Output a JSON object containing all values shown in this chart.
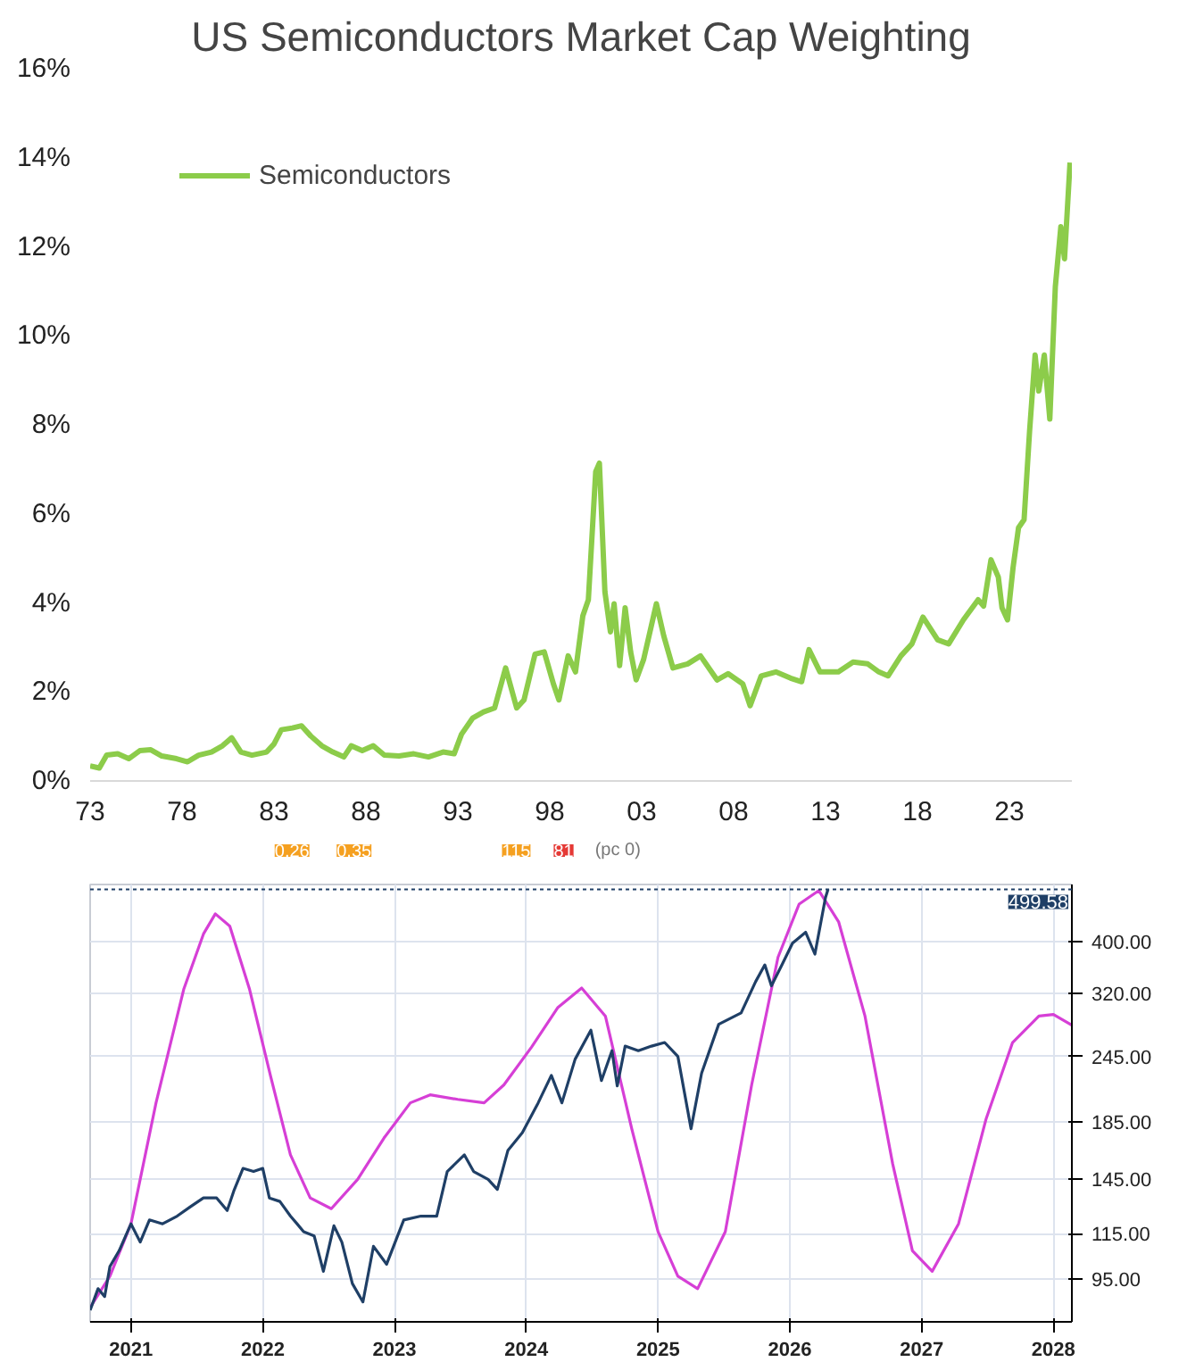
{
  "chart_data": [
    {
      "type": "line",
      "title": "US Semiconductors Market Cap Weighting",
      "legend": "top left",
      "grid": false,
      "xlim": [
        1973,
        2026.4
      ],
      "ylim": [
        0,
        16
      ],
      "xticks": [
        {
          "value": 1973,
          "label": "73"
        },
        {
          "value": 1978,
          "label": "78"
        },
        {
          "value": 1983,
          "label": "83"
        },
        {
          "value": 1988,
          "label": "88"
        },
        {
          "value": 1993,
          "label": "93"
        },
        {
          "value": 1998,
          "label": "98"
        },
        {
          "value": 2003,
          "label": "03"
        },
        {
          "value": 2008,
          "label": "08"
        },
        {
          "value": 2013,
          "label": "13"
        },
        {
          "value": 2018,
          "label": "18"
        },
        {
          "value": 2023,
          "label": "23"
        }
      ],
      "yticks": [
        {
          "value": 0,
          "label": "0%"
        },
        {
          "value": 2,
          "label": "2%"
        },
        {
          "value": 4,
          "label": "4%"
        },
        {
          "value": 6,
          "label": "6%"
        },
        {
          "value": 8,
          "label": "8%"
        },
        {
          "value": 10,
          "label": "10%"
        },
        {
          "value": 12,
          "label": "12%"
        },
        {
          "value": 14,
          "label": "14%"
        },
        {
          "value": 16,
          "label": "16%"
        }
      ],
      "series": [
        {
          "name": "Semiconductors",
          "color": "#8ccc4a",
          "x": [
            1973.0,
            1973.5,
            1973.9,
            1974.5,
            1975.1,
            1975.7,
            1976.3,
            1976.9,
            1977.7,
            1978.3,
            1978.9,
            1979.6,
            1980.2,
            1980.7,
            1981.2,
            1981.8,
            1982.6,
            1983.0,
            1983.4,
            1984.0,
            1984.5,
            1985.0,
            1985.6,
            1986.2,
            1986.8,
            1987.2,
            1987.8,
            1988.4,
            1989.0,
            1989.8,
            1990.6,
            1991.4,
            1992.2,
            1992.8,
            1993.2,
            1993.8,
            1994.4,
            1995.0,
            1995.6,
            1996.2,
            1996.6,
            1997.2,
            1997.7,
            1998.2,
            1998.5,
            1999.0,
            1999.4,
            1999.8,
            2000.1,
            2000.5,
            2000.7,
            2001.0,
            2001.3,
            2001.5,
            2001.8,
            2002.1,
            2002.4,
            2002.7,
            2003.1,
            2003.8,
            2004.2,
            2004.7,
            2005.5,
            2006.2,
            2007.1,
            2007.7,
            2008.5,
            2008.9,
            2009.5,
            2010.3,
            2011.1,
            2011.7,
            2012.1,
            2012.7,
            2013.7,
            2014.5,
            2015.3,
            2015.9,
            2016.4,
            2017.1,
            2017.7,
            2018.3,
            2019.1,
            2019.7,
            2020.5,
            2021.3,
            2021.6,
            2022.0,
            2022.4,
            2022.6,
            2022.9,
            2023.2,
            2023.5,
            2023.8,
            2024.1,
            2024.4,
            2024.6,
            2024.9,
            2025.2,
            2025.5,
            2025.8,
            2026.0,
            2026.3
          ],
          "values": [
            0.34,
            0.29,
            0.58,
            0.61,
            0.5,
            0.68,
            0.7,
            0.56,
            0.5,
            0.43,
            0.58,
            0.65,
            0.79,
            0.97,
            0.65,
            0.58,
            0.65,
            0.83,
            1.15,
            1.19,
            1.24,
            1.01,
            0.79,
            0.65,
            0.54,
            0.79,
            0.68,
            0.79,
            0.58,
            0.56,
            0.61,
            0.54,
            0.65,
            0.61,
            1.05,
            1.41,
            1.55,
            1.64,
            2.54,
            1.64,
            1.82,
            2.85,
            2.9,
            2.18,
            1.82,
            2.81,
            2.45,
            3.71,
            4.07,
            6.95,
            7.14,
            4.25,
            3.35,
            3.98,
            2.59,
            3.89,
            2.9,
            2.27,
            2.72,
            3.98,
            3.26,
            2.54,
            2.63,
            2.81,
            2.27,
            2.41,
            2.18,
            1.69,
            2.36,
            2.45,
            2.31,
            2.23,
            2.95,
            2.45,
            2.45,
            2.67,
            2.63,
            2.45,
            2.36,
            2.81,
            3.08,
            3.68,
            3.17,
            3.08,
            3.62,
            4.07,
            3.93,
            4.97,
            4.58,
            3.89,
            3.62,
            4.79,
            5.69,
            5.87,
            7.86,
            9.57,
            8.76,
            9.57,
            8.13,
            11.1,
            12.45,
            11.73,
            13.89
          ]
        }
      ]
    },
    {
      "type": "line",
      "log": true,
      "grid": true,
      "xlim": [
        2020.69,
        2028.14
      ],
      "ylim": [
        79,
        510
      ],
      "xticks": [
        {
          "value": 2021,
          "label": "2021"
        },
        {
          "value": 2022,
          "label": "2022"
        },
        {
          "value": 2023,
          "label": "2023"
        },
        {
          "value": 2024,
          "label": "2024"
        },
        {
          "value": 2025,
          "label": "2025"
        },
        {
          "value": 2026,
          "label": "2026"
        },
        {
          "value": 2027,
          "label": "2027"
        },
        {
          "value": 2028,
          "label": "2028"
        }
      ],
      "yticks": [
        {
          "value": 95,
          "label": "95.00"
        },
        {
          "value": 115,
          "label": "115.00"
        },
        {
          "value": 145,
          "label": "145.00"
        },
        {
          "value": 185,
          "label": "185.00"
        },
        {
          "value": 245,
          "label": "245.00"
        },
        {
          "value": 320,
          "label": "320.00"
        },
        {
          "value": 400,
          "label": "400.00"
        }
      ],
      "ref_lines": [
        {
          "axis": "y",
          "value": 499.58,
          "label": "499.58",
          "line_style": "dotted",
          "color": "#1f3f66"
        }
      ],
      "annotations": [
        "0.26",
        "0.35",
        "115",
        "81",
        "(pc 0)"
      ],
      "series": [
        {
          "color": "#d63fd6",
          "x": [
            2020.69,
            2020.84,
            2021.0,
            2021.19,
            2021.4,
            2021.55,
            2021.64,
            2021.75,
            2021.9,
            2022.06,
            2022.21,
            2022.36,
            2022.52,
            2022.72,
            2022.92,
            2023.12,
            2023.27,
            2023.48,
            2023.68,
            2023.83,
            2024.04,
            2024.24,
            2024.42,
            2024.6,
            2024.8,
            2025.0,
            2025.15,
            2025.3,
            2025.51,
            2025.71,
            2025.91,
            2026.07,
            2026.22,
            2026.37,
            2026.57,
            2026.78,
            2026.93,
            2027.08,
            2027.28,
            2027.49,
            2027.69,
            2027.89,
            2028.0,
            2028.14
          ],
          "values": [
            84,
            96,
            120,
            201,
            326,
            413,
            450,
            427,
            326,
            225,
            161,
            134,
            128,
            145,
            173,
            201,
            208,
            204,
            201,
            217,
            255,
            302,
            328,
            291,
            180,
            116,
            96,
            91,
            116,
            217,
            374,
            469,
            497,
            435,
            291,
            155,
            107,
            98,
            120,
            188,
            260,
            291,
            293,
            280
          ]
        },
        {
          "color": "#1f3f66",
          "x": [
            2020.69,
            2020.75,
            2020.8,
            2020.84,
            2020.91,
            2021.0,
            2021.07,
            2021.14,
            2021.24,
            2021.35,
            2021.45,
            2021.55,
            2021.65,
            2021.73,
            2021.78,
            2021.85,
            2021.93,
            2022.0,
            2022.05,
            2022.13,
            2022.21,
            2022.26,
            2022.31,
            2022.39,
            2022.46,
            2022.54,
            2022.6,
            2022.68,
            2022.76,
            2022.84,
            2022.94,
            2023.07,
            2023.2,
            2023.32,
            2023.4,
            2023.53,
            2023.6,
            2023.71,
            2023.78,
            2023.86,
            2023.97,
            2024.09,
            2024.19,
            2024.27,
            2024.37,
            2024.49,
            2024.57,
            2024.65,
            2024.69,
            2024.75,
            2024.85,
            2024.95,
            2025.05,
            2025.15,
            2025.25,
            2025.33,
            2025.46,
            2025.63,
            2025.74,
            2025.81,
            2025.86,
            2025.94,
            2026.02,
            2026.12,
            2026.19,
            2026.27,
            2026.29
          ],
          "values": [
            83,
            91,
            88,
            100,
            107,
            120,
            111,
            122,
            120,
            124,
            129,
            134,
            134,
            127,
            138,
            152,
            150,
            152,
            134,
            132,
            124,
            120,
            116,
            114,
            98,
            119,
            111,
            93,
            86,
            109,
            101,
            122,
            124,
            124,
            150,
            161,
            150,
            145,
            139,
            164,
            177,
            201,
            226,
            201,
            242,
            274,
            221,
            251,
            216,
            256,
            251,
            256,
            260,
            245,
            180,
            228,
            281,
            295,
            337,
            362,
            331,
            362,
            397,
            416,
            379,
            482,
            500
          ]
        }
      ]
    }
  ]
}
